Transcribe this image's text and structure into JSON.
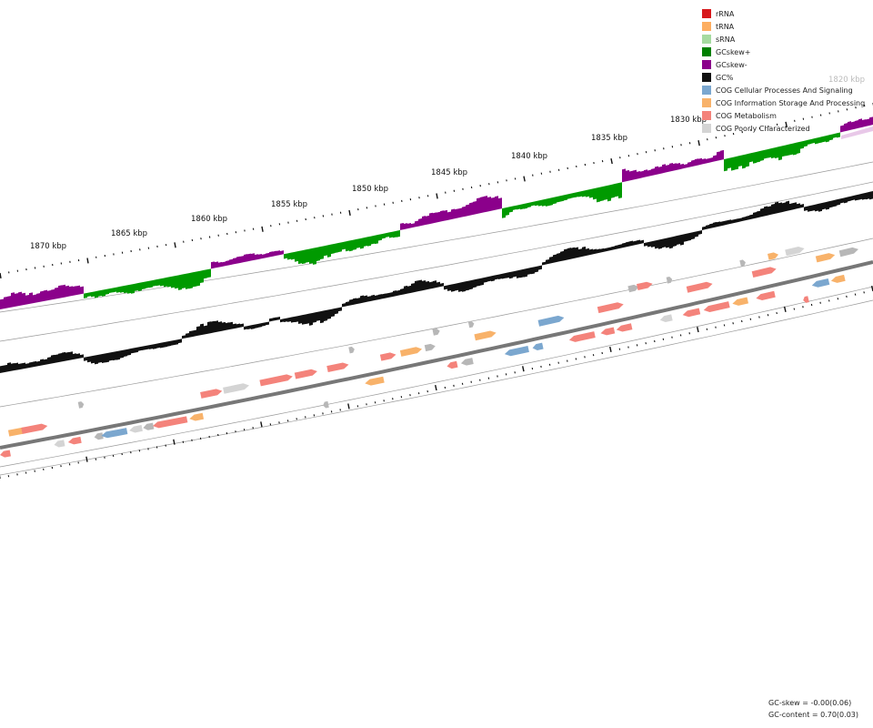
{
  "legend": [
    {
      "label": "rRNA",
      "color": "#d7191c"
    },
    {
      "label": "tRNA",
      "color": "#fdae61"
    },
    {
      "label": "sRNA",
      "color": "#a6dba0"
    },
    {
      "label": "GCskew+",
      "color": "#008000"
    },
    {
      "label": "GCskew-",
      "color": "#8b008b"
    },
    {
      "label": "GC%",
      "color": "#111111"
    },
    {
      "label": "COG Cellular Processes And Signaling",
      "color": "#7ba7cf"
    },
    {
      "label": "COG Information Storage And Processing",
      "color": "#f8b26a"
    },
    {
      "label": "COG Metabolism",
      "color": "#f4837b"
    },
    {
      "label": "COG Poorly Characterized",
      "color": "#d4d4d4"
    }
  ],
  "axis": {
    "unit": "kbp",
    "labels": [
      "1820 kbp",
      "1830 kbp",
      "1835 kbp",
      "1840 kbp",
      "1845 kbp",
      "1850 kbp",
      "1855 kbp",
      "1860 kbp",
      "1865 kbp",
      "1870 kbp"
    ],
    "faded_labels": [
      "1820 kbp"
    ]
  },
  "tracks": {
    "gc_skew": {
      "positive_color": "#009a00",
      "negative_color": "#8b008b"
    },
    "gc_content": {
      "color": "#111111"
    },
    "backbone_color": "#777777"
  },
  "stats": {
    "gc_skew": "GC-skew = -0.00(0.06)",
    "gc_content": "GC-content = 0.70(0.03)"
  }
}
